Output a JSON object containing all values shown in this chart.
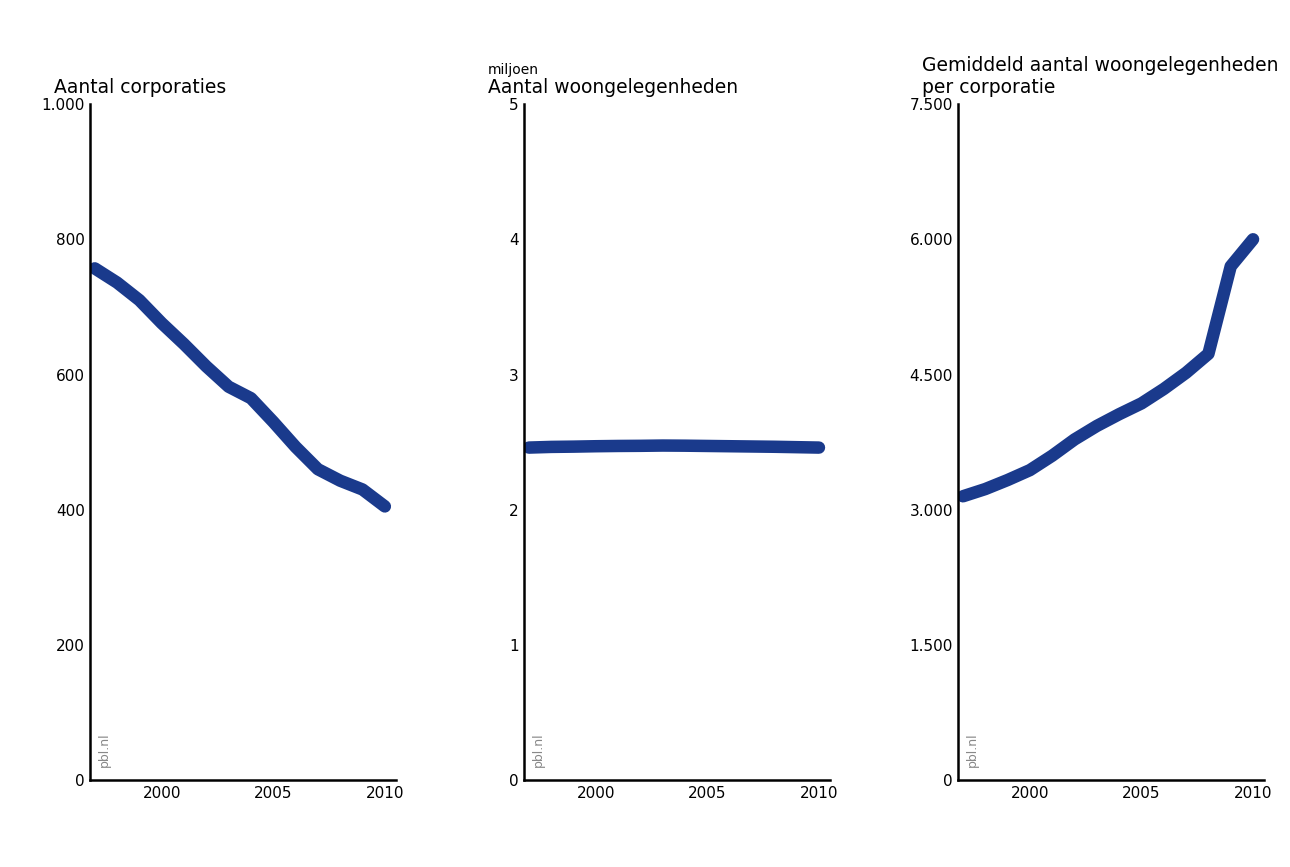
{
  "title1": "Aantal corporaties",
  "title2": "Aantal woongelegenheden",
  "title3": "Gemiddeld aantal woongelegenheden\nper corporatie",
  "subtitle2": "miljoen",
  "line_color": "#1a3a8c",
  "line_width": 9,
  "background_color": "#ffffff",
  "years": [
    1997,
    1998,
    1999,
    2000,
    2001,
    2002,
    2003,
    2004,
    2005,
    2006,
    2007,
    2008,
    2009,
    2010
  ],
  "plot1_values": [
    757,
    736,
    710,
    676,
    645,
    612,
    582,
    565,
    530,
    493,
    460,
    443,
    430,
    405
  ],
  "plot1_ylim": [
    0,
    1000
  ],
  "plot1_yticks": [
    0,
    200,
    400,
    600,
    800,
    1000
  ],
  "plot1_ytick_labels": [
    "0",
    "200",
    "400",
    "600",
    "800",
    "1.000"
  ],
  "plot2_values": [
    2.46,
    2.465,
    2.467,
    2.47,
    2.472,
    2.473,
    2.475,
    2.474,
    2.472,
    2.47,
    2.468,
    2.466,
    2.463,
    2.46
  ],
  "plot2_ylim": [
    0,
    5
  ],
  "plot2_yticks": [
    0,
    1,
    2,
    3,
    4,
    5
  ],
  "plot2_ytick_labels": [
    "0",
    "1",
    "2",
    "3",
    "4",
    "5"
  ],
  "plot3_values": [
    3150,
    3230,
    3330,
    3440,
    3600,
    3780,
    3930,
    4060,
    4180,
    4340,
    4520,
    4730,
    5700,
    6000
  ],
  "plot3_ylim": [
    0,
    7500
  ],
  "plot3_yticks": [
    0,
    1500,
    3000,
    4500,
    6000,
    7500
  ],
  "plot3_ytick_labels": [
    "0",
    "1.500",
    "3.000",
    "4.500",
    "6.000",
    "7.500"
  ],
  "watermark": "pbl.nl",
  "title_fontsize": 13.5,
  "tick_fontsize": 11,
  "subtitle_fontsize": 10,
  "xlim": [
    1996.8,
    2010.5
  ],
  "xticks": [
    2000,
    2005,
    2010
  ]
}
